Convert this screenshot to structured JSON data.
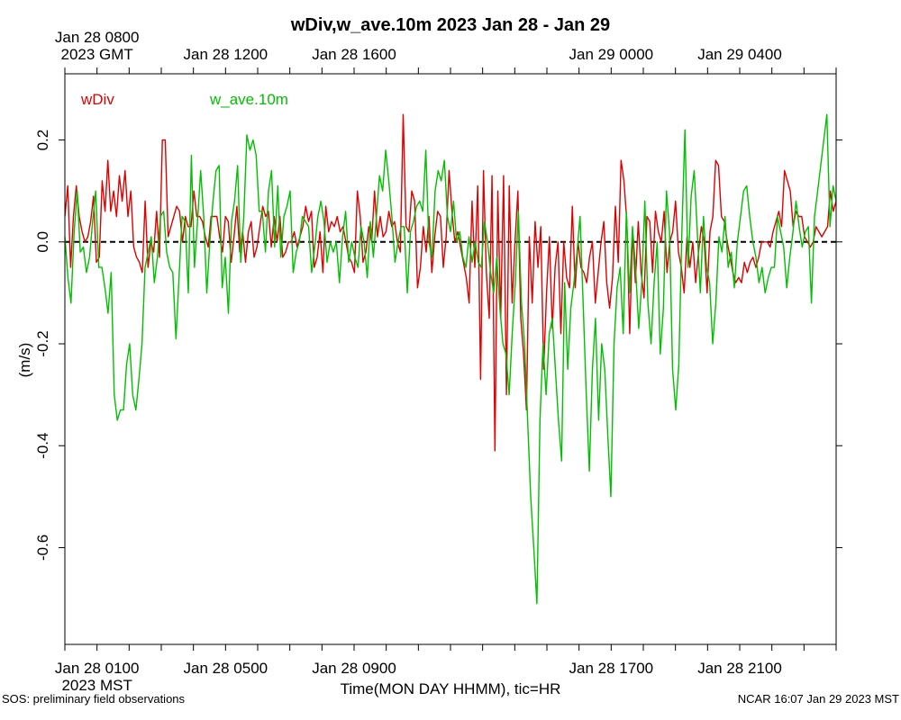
{
  "chart_data": {
    "type": "line",
    "title": "wDiv,w_ave.10m 2023 Jan 28 - Jan 29",
    "ylabel": "(m/s)",
    "xlabel": "Time(MON DAY HHMM), tic=HR",
    "ylim": [
      -0.79,
      0.33
    ],
    "xlim_hours_mst": [
      0,
      24
    ],
    "yticks": [
      -0.6,
      -0.4,
      -0.2,
      0.0,
      0.2
    ],
    "ytick_labels": [
      "-0.6",
      "-0.4",
      "-0.2",
      "0.0",
      "0.2"
    ],
    "grid": false,
    "zero_line": {
      "value": 0,
      "style": "dashed",
      "color": "#000000"
    },
    "bottom_tick_labels": [
      {
        "hour": 1,
        "lines": [
          "Jan 28 0100",
          "2023 MST"
        ]
      },
      {
        "hour": 5,
        "lines": [
          "Jan 28 0500"
        ]
      },
      {
        "hour": 9,
        "lines": [
          "Jan 28 0900"
        ]
      },
      {
        "hour": 17,
        "lines": [
          "Jan 28 1700"
        ]
      },
      {
        "hour": 21,
        "lines": [
          "Jan 28 2100"
        ]
      }
    ],
    "top_tick_labels": [
      {
        "hour": 1,
        "lines": [
          "Jan 28 0800",
          "2023 GMT"
        ]
      },
      {
        "hour": 5,
        "lines": [
          "Jan 28 1200"
        ]
      },
      {
        "hour": 9,
        "lines": [
          "Jan 28 1600"
        ]
      },
      {
        "hour": 17,
        "lines": [
          "Jan 29 0000"
        ]
      },
      {
        "hour": 21,
        "lines": [
          "Jan 29 0400"
        ]
      }
    ],
    "legend_placement": "top-left",
    "series": [
      {
        "name": "wDiv",
        "color": "#e00000",
        "y": [
          0.05,
          0.11,
          -0.05,
          0.05,
          0.11,
          0.05,
          0.02,
          0.0,
          0.01,
          0.04,
          0.09,
          -0.04,
          -0.03,
          0.12,
          0.06,
          0.16,
          0.06,
          0.1,
          0.05,
          0.13,
          0.08,
          0.14,
          0.05,
          0.1,
          -0.01,
          -0.03,
          -0.04,
          -0.06,
          0.08,
          -0.05,
          0.0,
          -0.02,
          0.06,
          -0.03,
          0.2,
          0.2,
          0.01,
          0.03,
          0.05,
          0.07,
          0.06,
          0.0,
          0.05,
          0.03,
          0.03,
          0.1,
          0.05,
          0.05,
          0.04,
          0.01,
          -0.01,
          0.05,
          0.05,
          0.05,
          0.01,
          -0.02,
          0.05,
          0.04,
          -0.04,
          0.01,
          0.07,
          -0.02,
          0.02,
          -0.04,
          0.02,
          0.04,
          -0.03,
          -0.01,
          0.03,
          0.07,
          0.05,
          0.06,
          -0.01,
          0.05,
          0.0,
          0.05,
          -0.03,
          -0.02,
          0.0,
          0.0,
          0.02,
          -0.01,
          0.01,
          0.03,
          0.07,
          0.04,
          0.06,
          -0.05,
          -0.03,
          0.02,
          -0.06,
          0.07,
          0.02,
          0.04,
          0.03,
          0.05,
          0.02,
          0.03,
          0.0,
          -0.03,
          -0.04,
          -0.06,
          0.1,
          0.05,
          -0.04,
          -0.02,
          0.03,
          0.0,
          0.1,
          0.01,
          0.05,
          0.01,
          0.02,
          0.06,
          0.03,
          0.04,
          0.0,
          -0.02,
          0.25,
          0.03,
          0.02,
          0.1,
          0.08,
          -0.09,
          -0.05,
          0.03,
          -0.02,
          0.05,
          -0.06,
          0.01,
          0.06,
          0.05,
          -0.05,
          0.01,
          0.14,
          0.06,
          0.0,
          0.02,
          -0.01,
          -0.04,
          -0.07,
          -0.12,
          0.08,
          -0.05,
          0.11,
          -0.27,
          0.14,
          -0.06,
          -0.15,
          0.13,
          -0.41,
          0.1,
          -0.15,
          0.13,
          -0.3,
          0.11,
          -0.12,
          0.0,
          0.1,
          -0.15,
          -0.22,
          -0.33,
          0.01,
          -0.12,
          0.04,
          -0.05,
          0.03,
          -0.25,
          -0.1,
          0.01,
          -0.17,
          -0.05,
          0.0,
          -0.18,
          0.0,
          -0.07,
          -0.09,
          0.07,
          -0.09,
          0.0,
          -0.05,
          -0.06,
          -0.08,
          -0.03,
          0.0,
          -0.12,
          -0.06,
          0.0,
          0.04,
          -0.08,
          -0.13,
          -0.07,
          0.07,
          -0.04,
          0.16,
          0.12,
          0.04,
          -0.18,
          0.02,
          -0.08,
          0.04,
          -0.06,
          -0.11,
          0.05,
          0.04,
          -0.06,
          0.06,
          0.02,
          0.0,
          0.06,
          -0.06,
          0.0,
          0.02,
          0.08,
          -0.02,
          -0.05,
          -0.1,
          0.01,
          -0.05,
          0.0,
          -0.08,
          -0.02,
          0.03,
          0.0,
          -0.1,
          0.02,
          0.05,
          0.16,
          0.15,
          0.05,
          0.04,
          0.0,
          -0.03,
          -0.06,
          -0.08,
          -0.07,
          -0.08,
          -0.04,
          -0.06,
          -0.04,
          -0.03,
          -0.05,
          -0.03,
          0.0,
          0.0,
          0.0,
          -0.01,
          0.02,
          0.04,
          0.06,
          0.03,
          0.14,
          0.12,
          0.1,
          0.03,
          0.06,
          0.05,
          0.05,
          0.01,
          0.0,
          -0.01,
          0.0,
          0.03,
          0.02,
          0.01,
          0.02,
          0.03,
          0.1,
          0.06,
          0.08
        ]
      },
      {
        "name": "w_ave.10m",
        "color": "#00c000",
        "y": [
          0.01,
          -0.07,
          -0.12,
          0.02,
          0.1,
          -0.02,
          -0.01,
          -0.06,
          -0.03,
          0.04,
          0.1,
          -0.05,
          -0.05,
          -0.09,
          -0.14,
          -0.06,
          -0.3,
          -0.35,
          -0.33,
          -0.33,
          -0.24,
          -0.2,
          -0.3,
          -0.33,
          -0.27,
          -0.2,
          -0.05,
          -0.02,
          0.01,
          -0.08,
          -0.03,
          0.05,
          0.06,
          -0.02,
          -0.05,
          -0.06,
          -0.19,
          -0.07,
          0.05,
          0.04,
          -0.1,
          0.17,
          -0.05,
          0.04,
          0.14,
          0.05,
          -0.1,
          0.0,
          0.08,
          0.14,
          0.15,
          -0.09,
          -0.03,
          -0.14,
          0.04,
          0.08,
          0.15,
          -0.04,
          0.05,
          0.21,
          0.18,
          0.2,
          0.17,
          0.06,
          0.06,
          -0.02,
          0.1,
          0.14,
          -0.01,
          0.11,
          -0.03,
          0.05,
          0.07,
          0.1,
          -0.06,
          -0.02,
          0.0,
          0.05,
          0.04,
          0.03,
          -0.06,
          -0.01,
          0.05,
          0.08,
          0.04,
          -0.04,
          0.0,
          -0.02,
          0.0,
          -0.08,
          0.01,
          0.06,
          -0.04,
          0.0,
          -0.03,
          -0.05,
          0.03,
          0.0,
          -0.07,
          0.04,
          -0.03,
          0.05,
          0.13,
          0.1,
          0.18,
          0.12,
          0.05,
          -0.04,
          0.0,
          0.03,
          0.03,
          -0.1,
          0.02,
          0.04,
          0.07,
          0.08,
          0.06,
          0.18,
          0.0,
          -0.03,
          0.1,
          0.14,
          0.12,
          0.16,
          0.05,
          0.02,
          0.08,
          0.0,
          0.02,
          -0.03,
          -0.05,
          0.01,
          -0.04,
          0.0,
          -0.04,
          -0.05,
          0.04,
          0.0,
          -0.06,
          -0.1,
          -0.03,
          -0.13,
          -0.2,
          -0.22,
          -0.3,
          -0.18,
          -0.08,
          0.06,
          -0.12,
          -0.2,
          -0.35,
          -0.5,
          -0.6,
          -0.71,
          -0.35,
          -0.2,
          -0.3,
          -0.18,
          -0.15,
          -0.25,
          -0.35,
          -0.43,
          -0.08,
          -0.25,
          -0.13,
          -0.08,
          -0.02,
          0.05,
          -0.12,
          -0.3,
          -0.45,
          -0.25,
          -0.15,
          -0.35,
          -0.2,
          -0.25,
          -0.38,
          -0.5,
          -0.2,
          -0.09,
          -0.05,
          -0.18,
          0.06,
          -0.1,
          0.03,
          -0.05,
          -0.17,
          -0.08,
          0.08,
          -0.12,
          -0.2,
          -0.08,
          0.0,
          -0.22,
          -0.13,
          0.1,
          0.02,
          -0.25,
          -0.33,
          -0.24,
          0.02,
          0.22,
          -0.05,
          0.09,
          0.14,
          0.02,
          -0.1,
          0.05,
          -0.05,
          -0.08,
          -0.2,
          -0.12,
          0.01,
          -0.02,
          0.05,
          -0.05,
          -0.02,
          -0.09,
          0.0,
          0.05,
          0.1,
          0.11,
          0.05,
          0.0,
          -0.03,
          -0.08,
          -0.05,
          -0.1,
          -0.07,
          -0.05,
          -0.05,
          0.05,
          0.02,
          -0.01,
          -0.09,
          -0.03,
          0.02,
          0.08,
          0.03,
          -0.01,
          0.02,
          0.03,
          -0.12,
          0.05,
          0.1,
          0.15,
          0.2,
          0.25,
          0.03,
          0.11,
          0.08
        ]
      }
    ]
  },
  "footer": {
    "left": "SOS: preliminary field observations",
    "right": "NCAR 16:07 Jan 29 2023 MST"
  }
}
